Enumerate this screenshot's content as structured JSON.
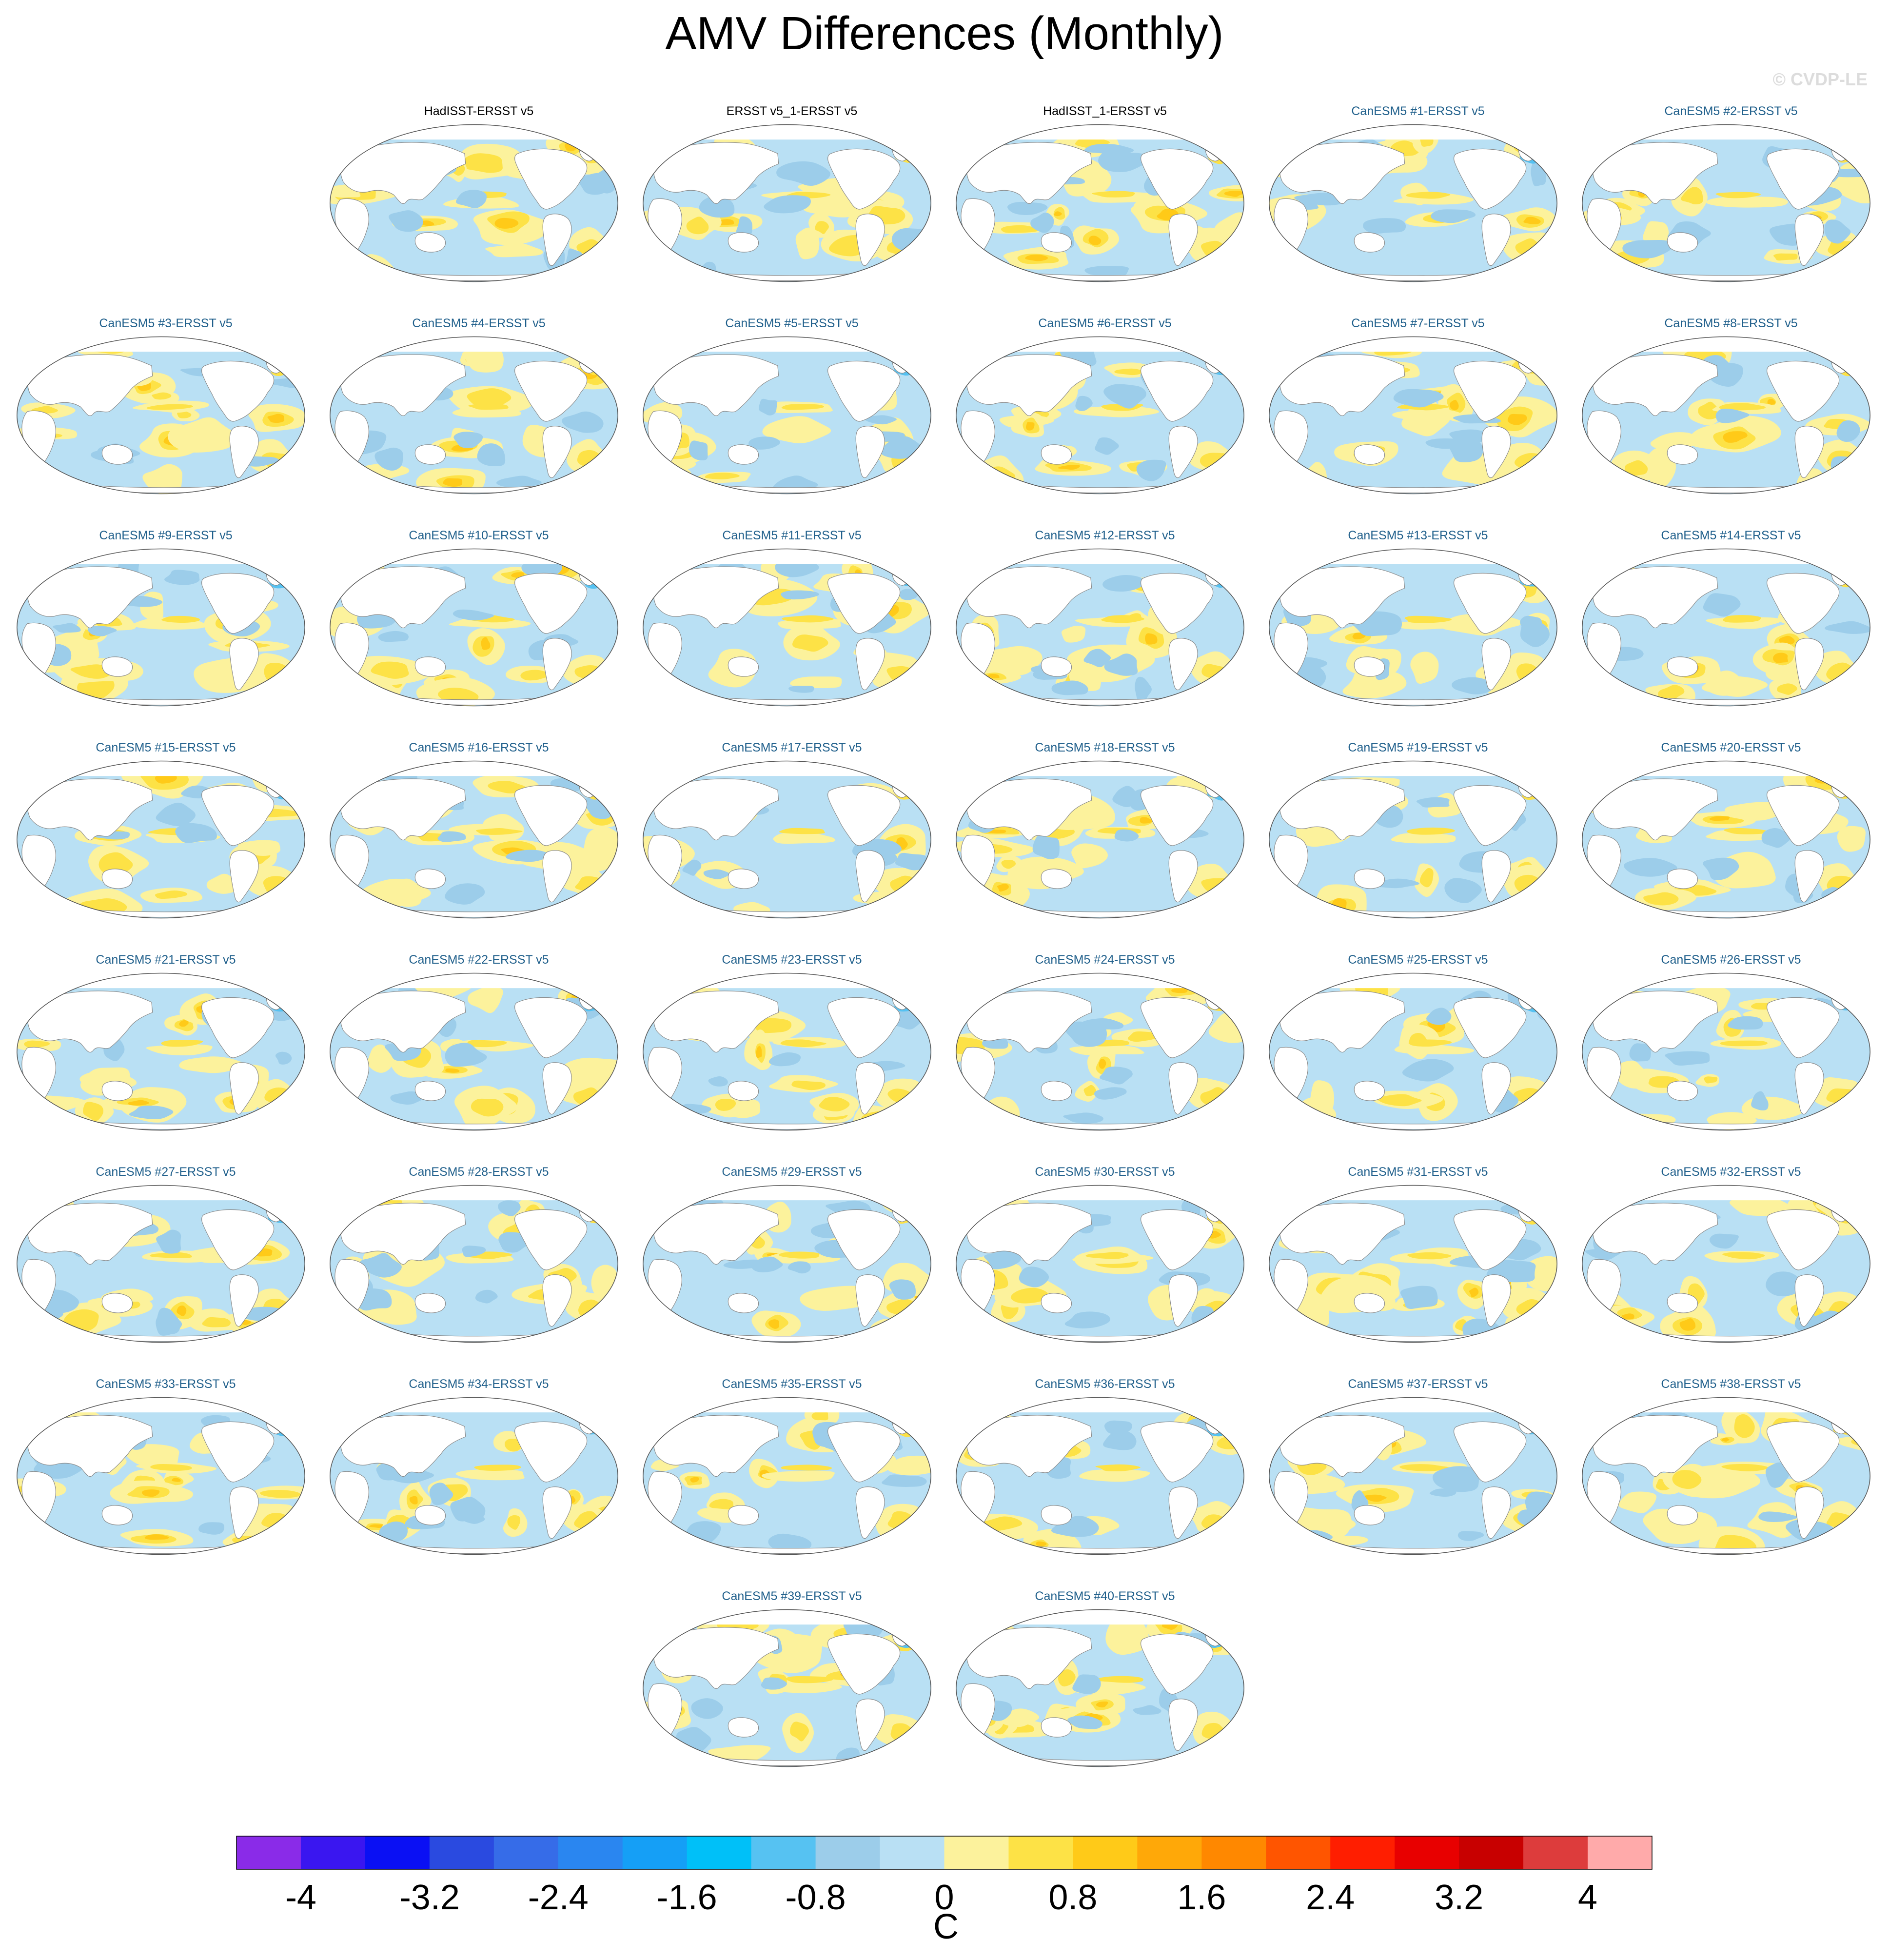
{
  "title": "AMV Differences (Monthly)",
  "credit": "© CVDP-LE",
  "chart_data": {
    "type": "map-contour-panels",
    "variable": "AMV SST pattern difference",
    "projection": "Robinson (Pacific-centered)",
    "panels": [
      {
        "label": "HadISST-ERSST v5",
        "kind": "obs"
      },
      {
        "label": "ERSST v5_1-ERSST v5",
        "kind": "obs"
      },
      {
        "label": "HadISST_1-ERSST v5",
        "kind": "obs"
      },
      {
        "label": "CanESM5 #1-ERSST v5",
        "kind": "model"
      },
      {
        "label": "CanESM5 #2-ERSST v5",
        "kind": "model"
      },
      {
        "label": "CanESM5 #3-ERSST v5",
        "kind": "model"
      },
      {
        "label": "CanESM5 #4-ERSST v5",
        "kind": "model"
      },
      {
        "label": "CanESM5 #5-ERSST v5",
        "kind": "model"
      },
      {
        "label": "CanESM5 #6-ERSST v5",
        "kind": "model"
      },
      {
        "label": "CanESM5 #7-ERSST v5",
        "kind": "model"
      },
      {
        "label": "CanESM5 #8-ERSST v5",
        "kind": "model"
      },
      {
        "label": "CanESM5 #9-ERSST v5",
        "kind": "model"
      },
      {
        "label": "CanESM5 #10-ERSST v5",
        "kind": "model"
      },
      {
        "label": "CanESM5 #11-ERSST v5",
        "kind": "model"
      },
      {
        "label": "CanESM5 #12-ERSST v5",
        "kind": "model"
      },
      {
        "label": "CanESM5 #13-ERSST v5",
        "kind": "model"
      },
      {
        "label": "CanESM5 #14-ERSST v5",
        "kind": "model"
      },
      {
        "label": "CanESM5 #15-ERSST v5",
        "kind": "model"
      },
      {
        "label": "CanESM5 #16-ERSST v5",
        "kind": "model"
      },
      {
        "label": "CanESM5 #17-ERSST v5",
        "kind": "model"
      },
      {
        "label": "CanESM5 #18-ERSST v5",
        "kind": "model"
      },
      {
        "label": "CanESM5 #19-ERSST v5",
        "kind": "model"
      },
      {
        "label": "CanESM5 #20-ERSST v5",
        "kind": "model"
      },
      {
        "label": "CanESM5 #21-ERSST v5",
        "kind": "model"
      },
      {
        "label": "CanESM5 #22-ERSST v5",
        "kind": "model"
      },
      {
        "label": "CanESM5 #23-ERSST v5",
        "kind": "model"
      },
      {
        "label": "CanESM5 #24-ERSST v5",
        "kind": "model"
      },
      {
        "label": "CanESM5 #25-ERSST v5",
        "kind": "model"
      },
      {
        "label": "CanESM5 #26-ERSST v5",
        "kind": "model"
      },
      {
        "label": "CanESM5 #27-ERSST v5",
        "kind": "model"
      },
      {
        "label": "CanESM5 #28-ERSST v5",
        "kind": "model"
      },
      {
        "label": "CanESM5 #29-ERSST v5",
        "kind": "model"
      },
      {
        "label": "CanESM5 #30-ERSST v5",
        "kind": "model"
      },
      {
        "label": "CanESM5 #31-ERSST v5",
        "kind": "model"
      },
      {
        "label": "CanESM5 #32-ERSST v5",
        "kind": "model"
      },
      {
        "label": "CanESM5 #33-ERSST v5",
        "kind": "model"
      },
      {
        "label": "CanESM5 #34-ERSST v5",
        "kind": "model"
      },
      {
        "label": "CanESM5 #35-ERSST v5",
        "kind": "model"
      },
      {
        "label": "CanESM5 #36-ERSST v5",
        "kind": "model"
      },
      {
        "label": "CanESM5 #37-ERSST v5",
        "kind": "model"
      },
      {
        "label": "CanESM5 #38-ERSST v5",
        "kind": "model"
      },
      {
        "label": "CanESM5 #39-ERSST v5",
        "kind": "model"
      },
      {
        "label": "CanESM5 #40-ERSST v5",
        "kind": "model"
      }
    ],
    "colorbar": {
      "unit": "C",
      "levels": [
        -4,
        -3.6,
        -3.2,
        -2.8,
        -2.4,
        -2,
        -1.6,
        -1.2,
        -0.8,
        -0.4,
        0,
        0.4,
        0.8,
        1.2,
        1.6,
        2,
        2.4,
        2.8,
        3.2,
        3.6,
        4
      ],
      "tick_labels": [
        "-4",
        "-3.2",
        "-2.4",
        "-1.6",
        "-0.8",
        "0",
        "0.8",
        "1.6",
        "2.4",
        "3.2",
        "4"
      ],
      "colors": [
        "#8a2be8",
        "#3a16f0",
        "#0a10f4",
        "#2a4ae0",
        "#366ce8",
        "#2a86f0",
        "#159ff6",
        "#00c0f8",
        "#56c2f2",
        "#9ccdea",
        "#b9e0f4",
        "#fcf29c",
        "#fde246",
        "#ffca18",
        "#ffa808",
        "#ff8800",
        "#ff5500",
        "#ff1e00",
        "#e80000",
        "#c80000",
        "#dd3c3c",
        "#ffaaaa"
      ]
    }
  }
}
